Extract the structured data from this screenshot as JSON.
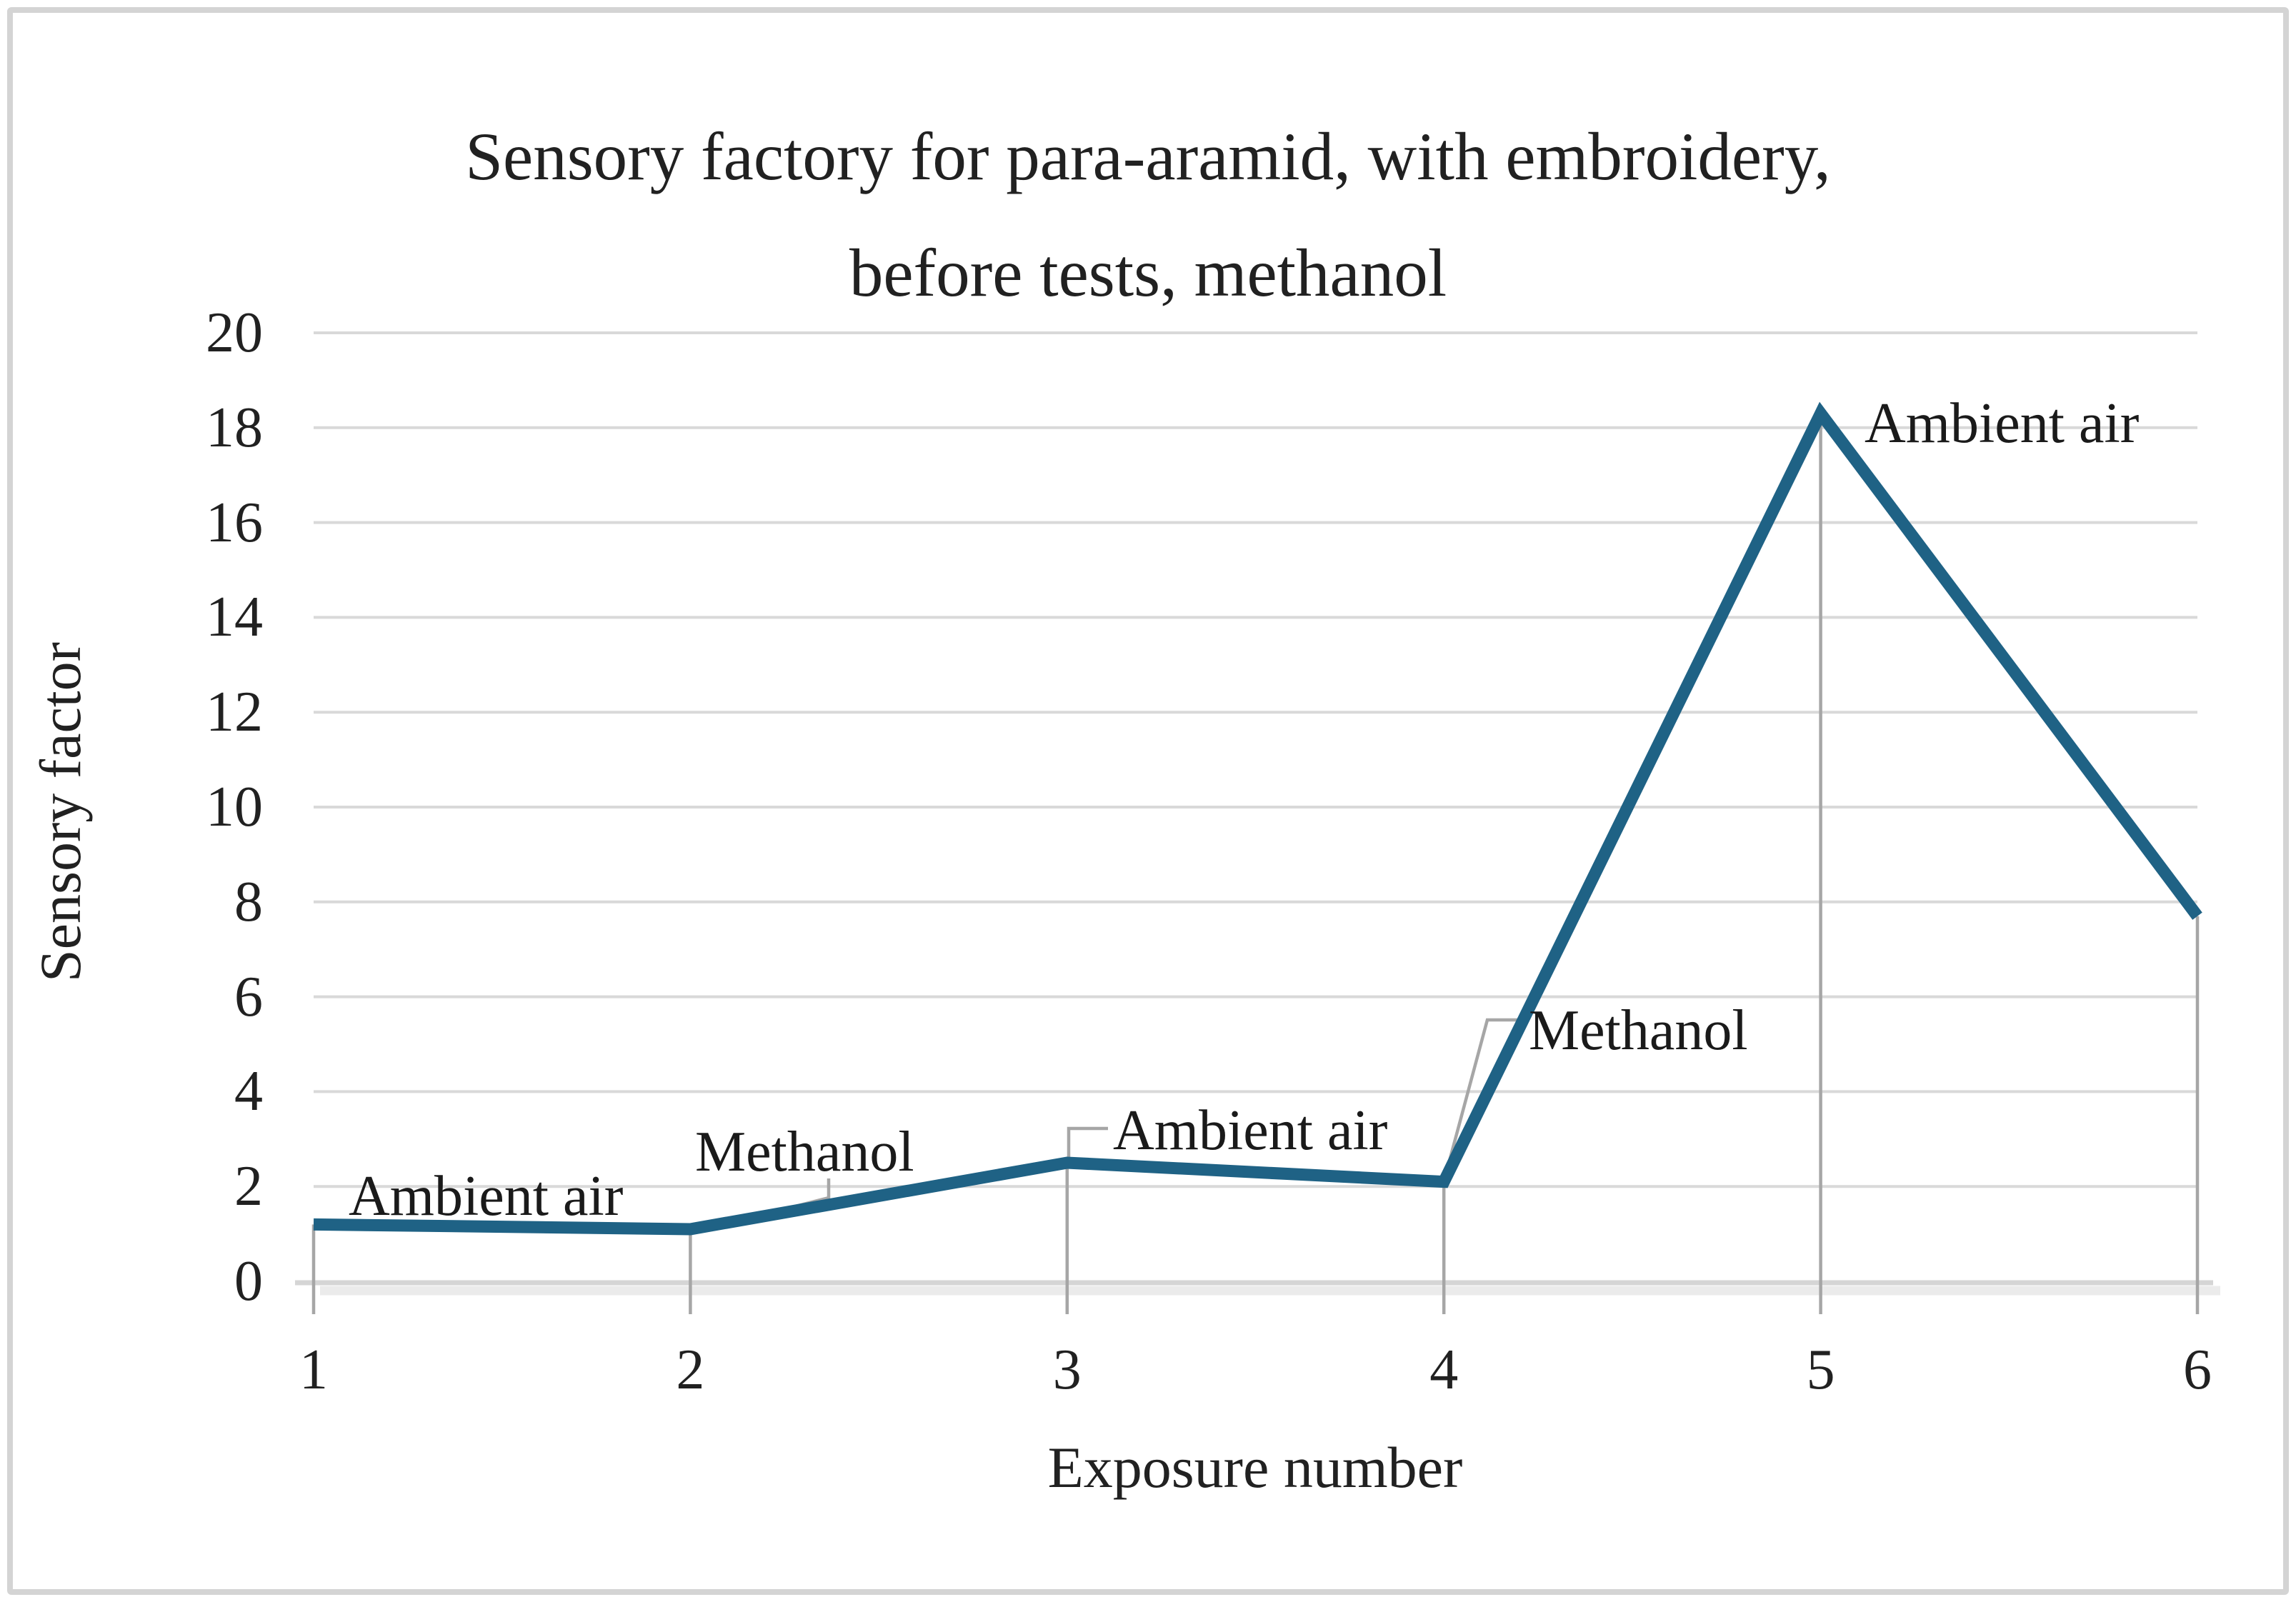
{
  "figure": {
    "background": "#ffffff",
    "border_color": "#d4d4d4"
  },
  "chart_data": {
    "type": "line",
    "title": "Sensory factory for para-aramid, with embroidery, before tests, methanol",
    "title_lines": [
      "Sensory factory for para-aramid, with embroidery,",
      "before tests, methanol"
    ],
    "xlabel": "Exposure number",
    "ylabel": "Sensory factor",
    "categories": [
      1,
      2,
      3,
      4,
      5,
      6
    ],
    "series": [
      {
        "name": "Sensory factor",
        "color": "#1f6285",
        "values": [
          1.2,
          1.1,
          2.5,
          2.1,
          18.3,
          7.7
        ]
      }
    ],
    "ylim": [
      0,
      20
    ],
    "ytick_step": 2,
    "grid": "horizontal-only",
    "legend": "none",
    "gridline_color": "#d9d9d9",
    "dropline_color": "#a6a6a6",
    "axis_color": "#d5d5d5",
    "axis_shadow_color": "#ebebeb",
    "text_color": "#212121",
    "point_labels": [
      {
        "point": 1,
        "text": "Ambient air"
      },
      {
        "point": 2,
        "text": "Methanol"
      },
      {
        "point": 3,
        "text": "Ambient air"
      },
      {
        "point": 4,
        "text": "Methanol"
      },
      {
        "point": 5,
        "text": "Ambient air"
      }
    ]
  }
}
